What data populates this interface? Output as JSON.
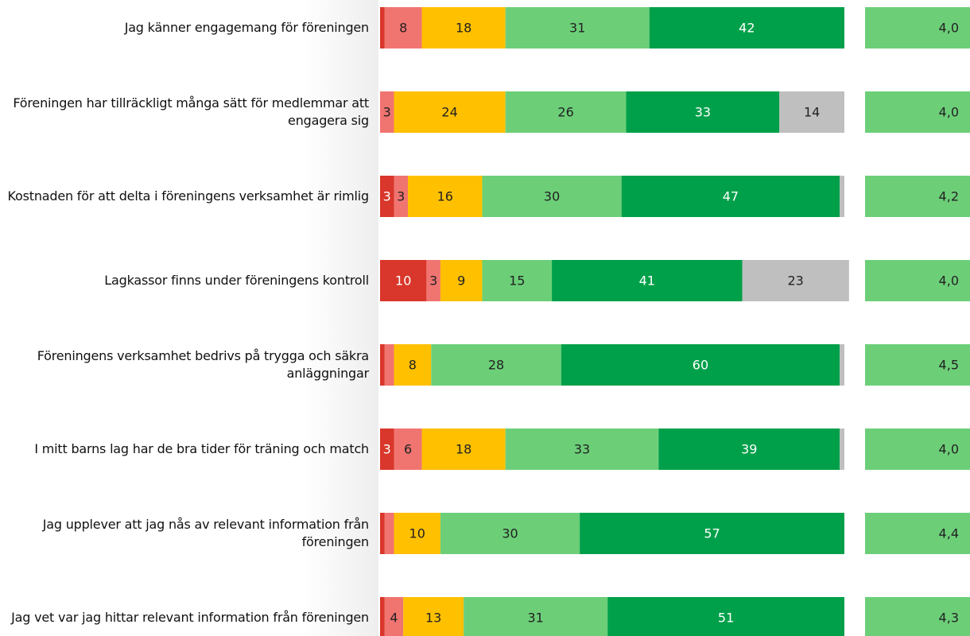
{
  "chart_data": {
    "type": "stacked-bar",
    "categories": [
      "Jag känner engagemang för föreningen",
      "Föreningen har tillräckligt många sätt för medlemmar att engagera sig",
      "Kostnaden för att delta i föreningens verksamhet är rimlig",
      "Lagkassor finns under föreningens kontroll",
      "Föreningens verksamhet bedrivs på trygga och säkra anläggningar",
      "I mitt barns lag har de bra tider för träning och match",
      "Jag upplever att jag nås av relevant information från föreningen",
      "Jag vet var jag hittar relevant information från föreningen"
    ],
    "series": [
      {
        "color": "#d9372b",
        "values": [
          1,
          0,
          3,
          10,
          1,
          3,
          1,
          1
        ]
      },
      {
        "color": "#f07470",
        "values": [
          8,
          3,
          3,
          3,
          2,
          6,
          2,
          4
        ]
      },
      {
        "color": "#ffc000",
        "values": [
          18,
          24,
          16,
          9,
          8,
          18,
          10,
          13
        ]
      },
      {
        "color": "#6ccf78",
        "values": [
          31,
          26,
          30,
          15,
          28,
          33,
          30,
          31
        ]
      },
      {
        "color": "#00a04a",
        "values": [
          42,
          33,
          47,
          41,
          60,
          39,
          57,
          51
        ]
      },
      {
        "color": "#bfbfbf",
        "values": [
          0,
          14,
          1,
          23,
          1,
          1,
          0,
          0
        ]
      }
    ],
    "xlim": [
      0,
      100
    ],
    "means": [
      4.0,
      4.0,
      4.2,
      4.0,
      4.5,
      4.0,
      4.4,
      4.3
    ],
    "mean_labels": [
      "4,0",
      "4,0",
      "4,2",
      "4,0",
      "4,5",
      "4,0",
      "4,4",
      "4,3"
    ],
    "mean_color": "#6ccf78"
  }
}
